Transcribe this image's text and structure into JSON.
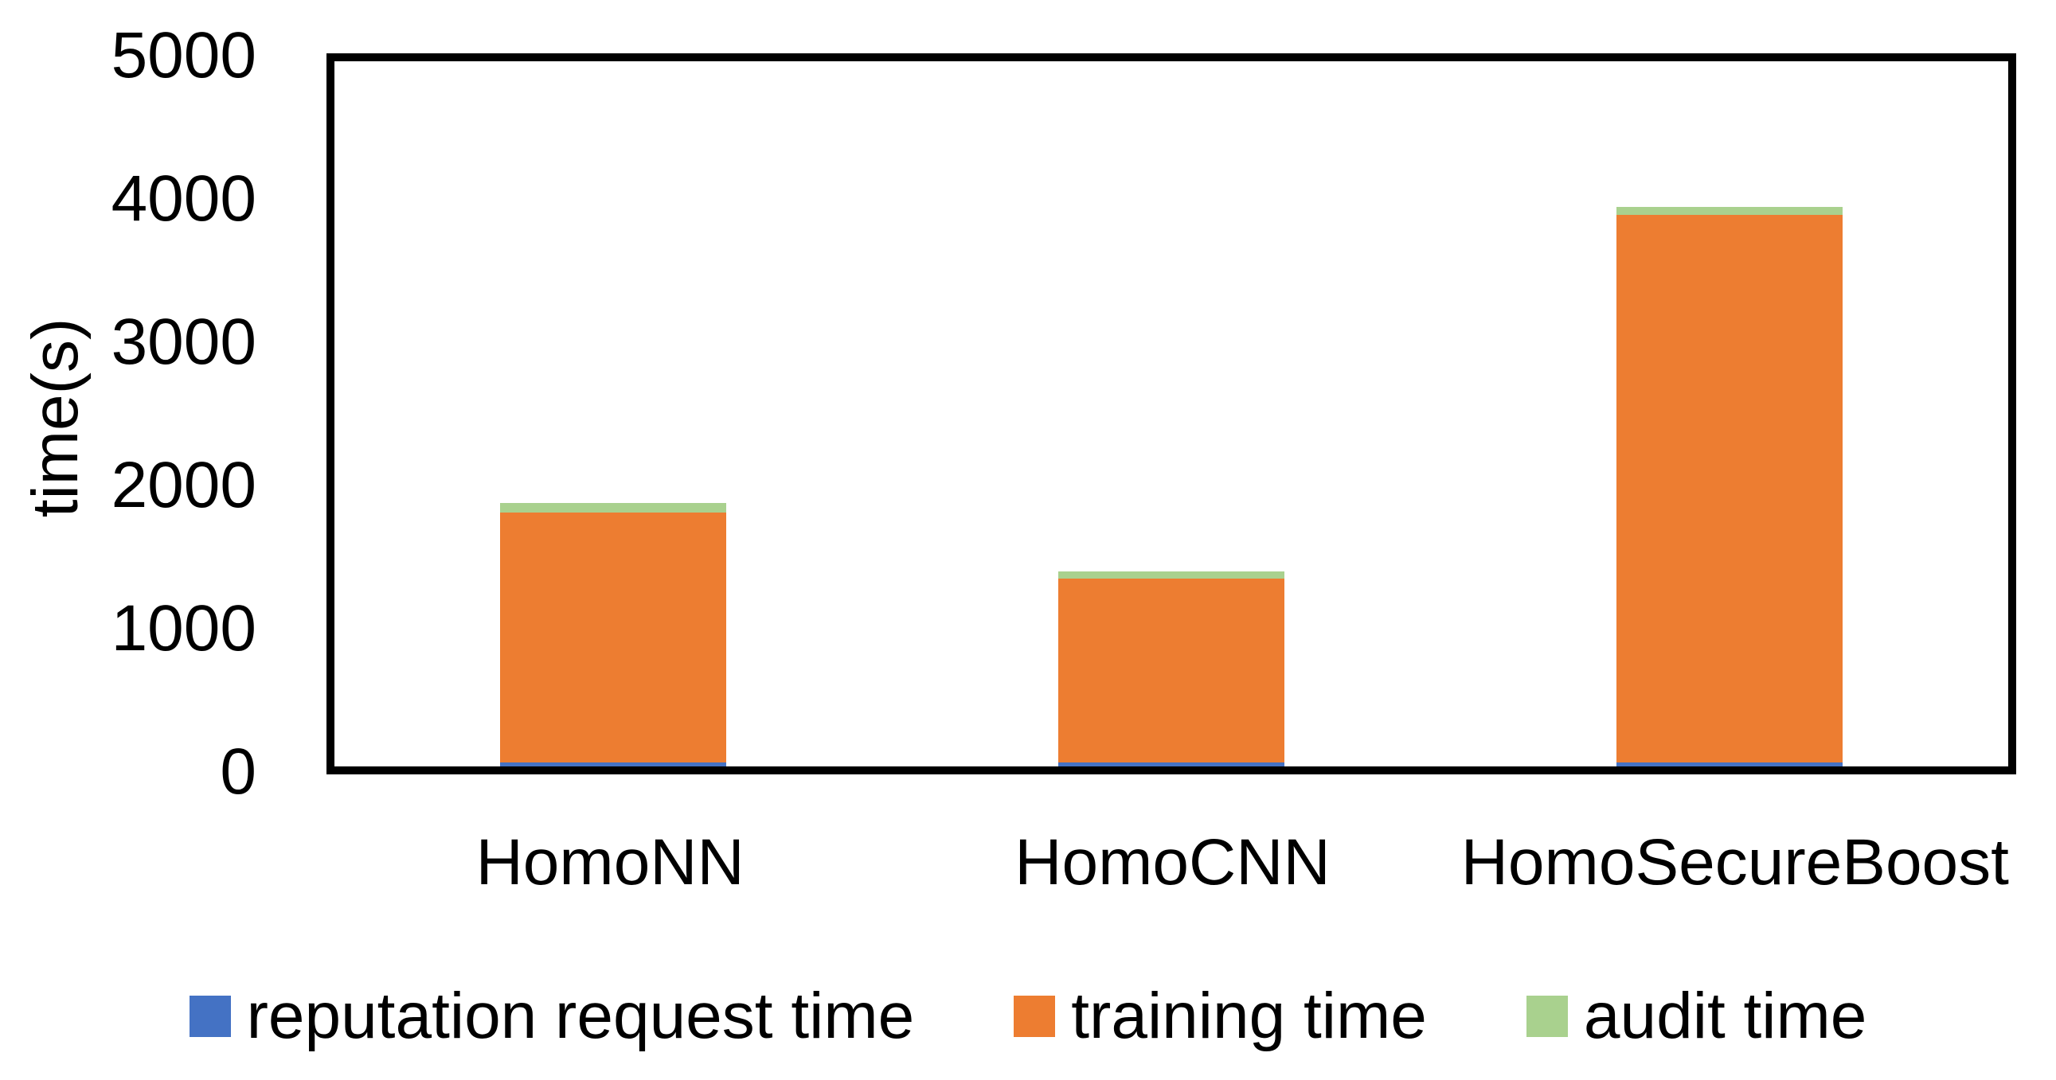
{
  "chart_data": {
    "type": "bar",
    "stacked": true,
    "title": "",
    "xlabel": "",
    "ylabel": "time(s)",
    "categories": [
      "HomoNN",
      "HomoCNN",
      "HomoSecureBoost"
    ],
    "series": [
      {
        "name": "reputation request time",
        "color": "#4472C4",
        "values": [
          30,
          30,
          30
        ]
      },
      {
        "name": "training time",
        "color": "#ED7D31",
        "values": [
          1770,
          1300,
          3880
        ]
      },
      {
        "name": "audit time",
        "color": "#A9D18E",
        "values": [
          70,
          50,
          60
        ]
      }
    ],
    "ylim": [
      0,
      5000
    ],
    "yticks": [
      "0",
      "1000",
      "2000",
      "3000",
      "4000",
      "5000"
    ],
    "grid": false,
    "legend_position": "bottom",
    "plot_border_color": "#000000",
    "text_color": "#000000",
    "background_color": "#FFFFFF"
  }
}
